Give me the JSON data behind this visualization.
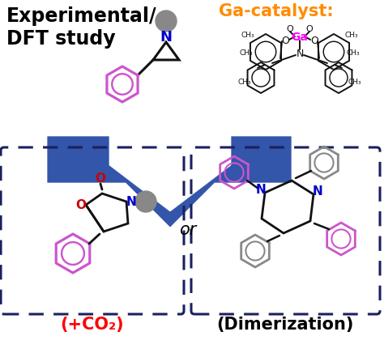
{
  "title_text": "Experimental/\nDFT study",
  "title_color": "#000000",
  "title_fontsize": 17,
  "title_fontweight": "bold",
  "ga_label": "Ga-catalyst:",
  "ga_color": "#FF8C00",
  "ga_fontsize": 15,
  "ga_fontweight": "bold",
  "co2_label": "(+CO₂)",
  "co2_color": "#FF0000",
  "co2_fontsize": 15,
  "co2_fontweight": "bold",
  "dim_label": "(Dimerization)",
  "dim_color": "#000000",
  "dim_fontsize": 15,
  "dim_fontweight": "bold",
  "or_label": "or",
  "or_color": "#000000",
  "or_fontsize": 15,
  "arrow_color": "#3355AA",
  "box_color": "#1a2060",
  "molecule_purple": "#CC55CC",
  "molecule_gray": "#888888",
  "molecule_blue": "#0000CC",
  "molecule_red": "#CC0000",
  "molecule_dark": "#111111",
  "ga_atom_color": "#FF00FF",
  "background": "#FFFFFF"
}
